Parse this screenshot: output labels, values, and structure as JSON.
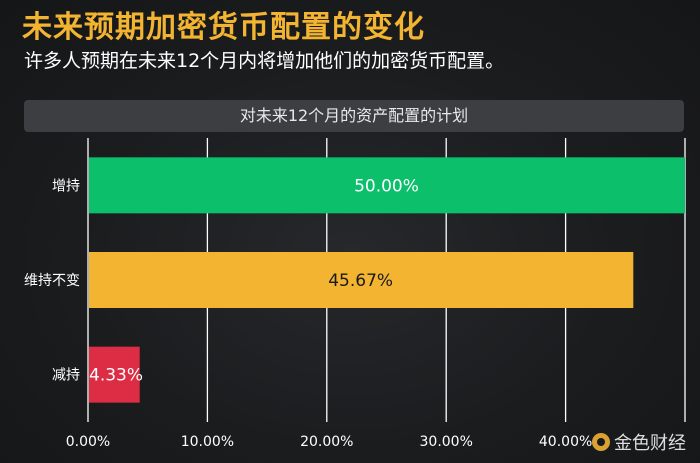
{
  "header": {
    "title": "未来预期加密货币配置的变化",
    "subtitle": "许多人预期在未来12个月内将增加他们的加密货币配置。"
  },
  "chart_data": {
    "type": "bar",
    "orientation": "horizontal",
    "title": "对未来12个月的资产配置的计划",
    "categories": [
      "增持",
      "维持不变",
      "减持"
    ],
    "values": [
      50.0,
      45.67,
      4.33
    ],
    "value_labels": [
      "50.00%",
      "45.67%",
      "4.33%"
    ],
    "colors": [
      "#0cbf6b",
      "#f2b431",
      "#dc2d44"
    ],
    "label_colors": [
      "#ffffff",
      "#1a1a1a",
      "#ffffff"
    ],
    "x_ticks": [
      0,
      10,
      20,
      30,
      40,
      50
    ],
    "x_tick_labels": [
      "0.00%",
      "10.00%",
      "20.00%",
      "30.00%",
      "40.00%",
      ""
    ],
    "xlim": [
      0,
      50
    ],
    "grid": true,
    "xlabel": "",
    "ylabel": ""
  },
  "watermark": {
    "text": "金色财经"
  }
}
